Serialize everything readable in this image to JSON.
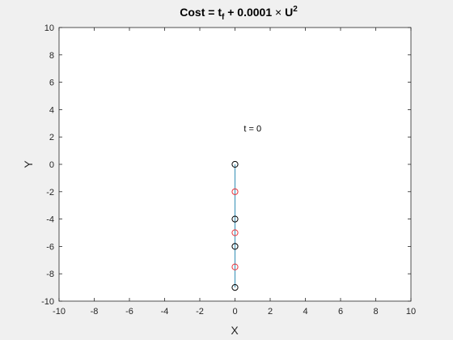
{
  "chart_data": {
    "type": "line",
    "title_parts": [
      "Cost = t",
      "f",
      " + 0.0001 ",
      "×",
      " U",
      "2"
    ],
    "xlabel": "X",
    "ylabel": "Y",
    "xlim": [
      -10,
      10
    ],
    "ylim": [
      -10,
      10
    ],
    "x_ticks": [
      -10,
      -8,
      -6,
      -4,
      -2,
      0,
      2,
      4,
      6,
      8,
      10
    ],
    "y_ticks": [
      -10,
      -8,
      -6,
      -4,
      -2,
      0,
      2,
      4,
      6,
      8,
      10
    ],
    "grid": false,
    "annotation": {
      "text": "t = 0",
      "x": 0.5,
      "y": 2.4
    },
    "series": [
      {
        "name": "link",
        "style": "line",
        "color": "#4a9bbd",
        "x": [
          0,
          0
        ],
        "y": [
          0,
          -9
        ]
      },
      {
        "name": "joints",
        "style": "marker",
        "color": "#000000",
        "x": [
          0,
          0,
          0,
          0
        ],
        "y": [
          0,
          -4,
          -6,
          -9
        ]
      },
      {
        "name": "centers",
        "style": "marker",
        "color": "#e8333a",
        "x": [
          0,
          0,
          0
        ],
        "y": [
          -2,
          -5,
          -7.5
        ]
      }
    ]
  },
  "colors": {
    "figure_background": "#f0f0f0",
    "axes_background": "#ffffff",
    "axes_color": "#262626"
  }
}
